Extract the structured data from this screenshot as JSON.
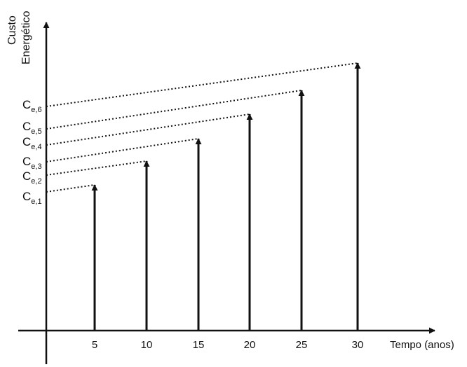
{
  "diagram": {
    "y_axis_label_lines": [
      "Custo",
      "Energético"
    ],
    "x_axis_label": "Tempo (anos)",
    "x_ticks": [
      "5",
      "10",
      "15",
      "20",
      "25",
      "30"
    ],
    "arrows": [
      {
        "t": 5,
        "cost": 1
      },
      {
        "t": 10,
        "cost": 2
      },
      {
        "t": 15,
        "cost": 3
      },
      {
        "t": 20,
        "cost": 4
      },
      {
        "t": 25,
        "cost": 5
      },
      {
        "t": 30,
        "cost": 6
      }
    ],
    "cost_labels": [
      {
        "main": "C",
        "sub": "e,1"
      },
      {
        "main": "C",
        "sub": "e,2"
      },
      {
        "main": "C",
        "sub": "e,3"
      },
      {
        "main": "C",
        "sub": "e,4"
      },
      {
        "main": "C",
        "sub": "e,5"
      },
      {
        "main": "C",
        "sub": "e,6"
      }
    ],
    "colors": {
      "ink": "#111111",
      "background": "#ffffff"
    }
  }
}
